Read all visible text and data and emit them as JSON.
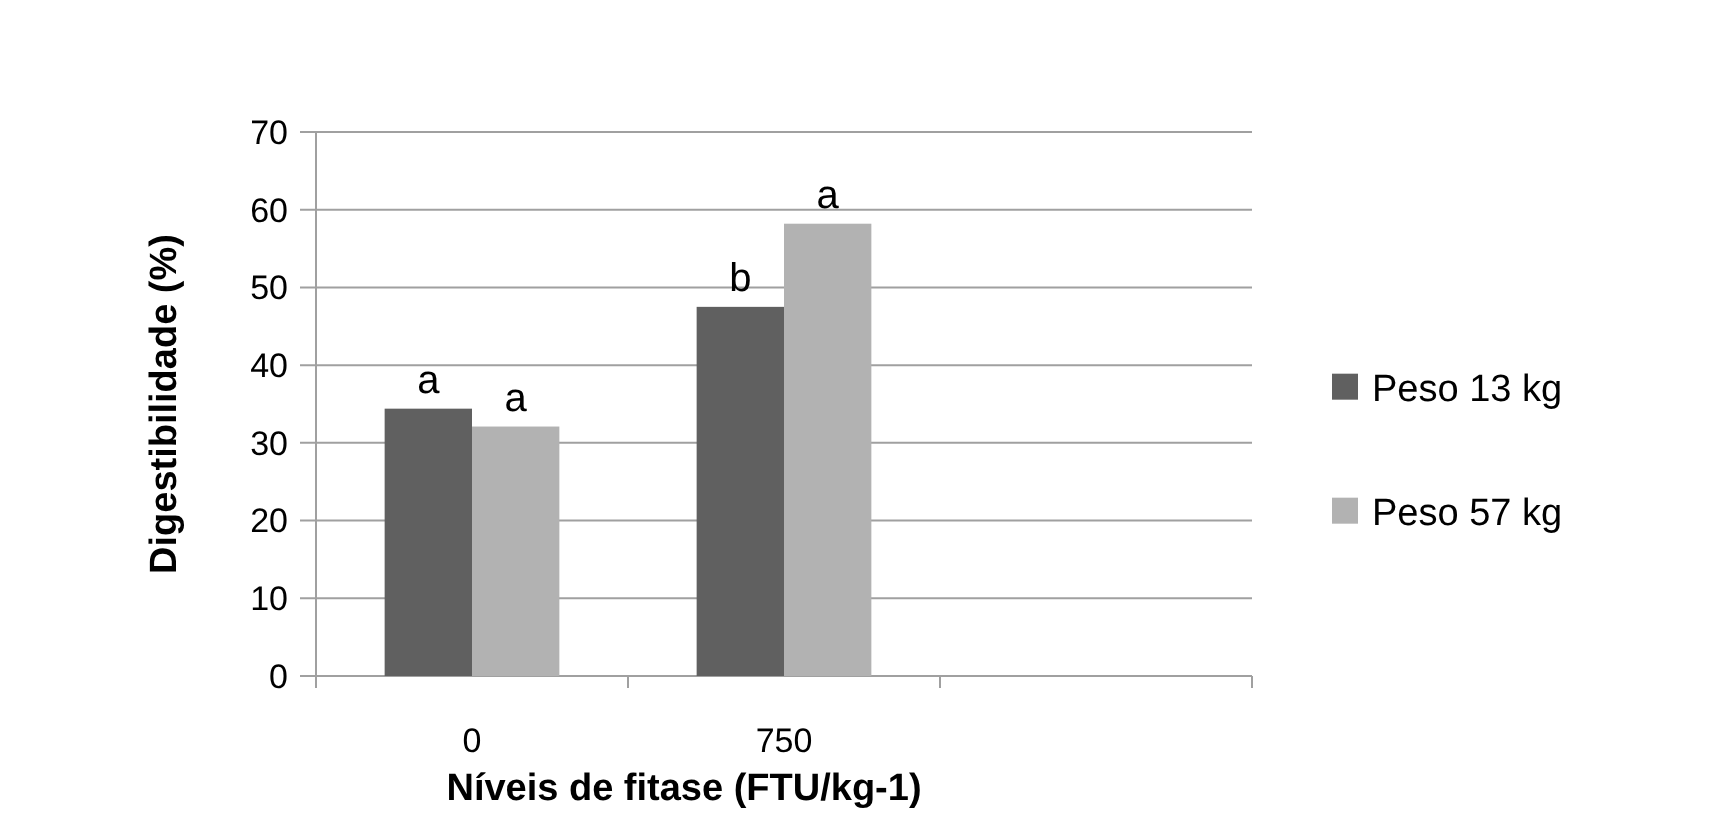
{
  "chart_data": {
    "type": "bar",
    "xlabel": "Níveis de fitase (FTU/kg-1)",
    "ylabel": "Digestibilidade (%)",
    "categories": [
      "0",
      "750",
      null
    ],
    "series": [
      {
        "name": "Peso 13 kg",
        "color": "#606060",
        "values": [
          34.4,
          47.5,
          null
        ]
      },
      {
        "name": "Peso 57 kg",
        "color": "#b2b2b2",
        "values": [
          32.1,
          58.2,
          null
        ]
      }
    ],
    "ylim": [
      0,
      70
    ],
    "yticks": [
      0,
      10,
      20,
      30,
      40,
      50,
      60,
      70
    ],
    "grid": "y",
    "legend": "right",
    "annotations": [
      {
        "text": "a",
        "x": "0",
        "y": 34.4
      },
      {
        "text": "a",
        "x": "0",
        "y": 32.1
      },
      {
        "text": "b",
        "x": "750",
        "y": 47.5
      },
      {
        "text": "a",
        "x": "750",
        "y": 58.2
      }
    ]
  }
}
